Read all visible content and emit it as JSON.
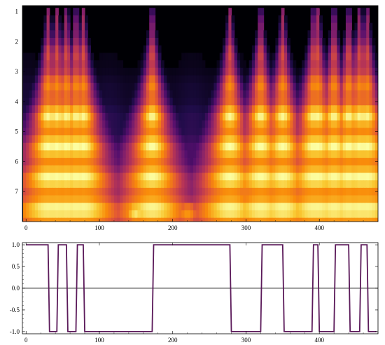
{
  "chart_data": [
    {
      "type": "heatmap",
      "title": "",
      "xlabel": "",
      "ylabel": "",
      "xlim": [
        -5,
        480
      ],
      "ylim": [
        0.8,
        8
      ],
      "y_reversed": true,
      "x_ticks": [
        "0",
        "100",
        "200",
        "300",
        "400"
      ],
      "x_tick_values": [
        0,
        100,
        200,
        300,
        400
      ],
      "y_ticks": [
        "1",
        "2",
        "3",
        "4",
        "5",
        "6",
        "7"
      ],
      "y_tick_values": [
        1,
        2,
        3,
        4,
        5,
        6,
        7
      ],
      "colormap": "inferno",
      "colors": {
        "low": "#000004",
        "mid": "#b73779",
        "high": "#fcffa4"
      },
      "description_data": {
        "scale_min": 1,
        "scale_max": 8,
        "transitions_x": [
          30,
          42,
          55,
          68,
          78,
          172,
          278,
          320,
          350,
          392,
          398,
          420,
          440,
          455,
          465
        ],
        "bright_regions": [
          {
            "x": 150,
            "scale": 7.8,
            "level": 1.0
          },
          {
            "x": 220,
            "scale": 7.9,
            "level": 0.9
          },
          {
            "x": 300,
            "scale": 7.0,
            "level": 0.95
          },
          {
            "x": 330,
            "scale": 6.5,
            "level": 0.95
          },
          {
            "x": 60,
            "scale": 5.2,
            "level": 0.8
          },
          {
            "x": 440,
            "scale": 5.2,
            "level": 0.8
          }
        ]
      }
    },
    {
      "type": "line",
      "title": "",
      "xlabel": "",
      "ylabel": "",
      "xlim": [
        -5,
        480
      ],
      "ylim": [
        -1.05,
        1.05
      ],
      "x_ticks": [
        "0",
        "100",
        "200",
        "300",
        "400"
      ],
      "x_tick_values": [
        0,
        100,
        200,
        300,
        400
      ],
      "y_ticks": [
        "-1.0",
        "-0.5",
        "0.0",
        "0.5",
        "1.0"
      ],
      "y_tick_values": [
        -1.0,
        -0.5,
        0.0,
        0.5,
        1.0
      ],
      "color": "#5b1a5a",
      "series": [
        {
          "x": [
            0,
            30,
            32,
            42,
            44,
            55,
            57,
            68,
            70,
            78,
            80,
            172,
            174,
            278,
            280,
            320,
            322,
            350,
            352,
            390,
            392,
            398,
            400,
            420,
            422,
            440,
            442,
            455,
            457,
            465,
            467,
            478
          ],
          "values": [
            1,
            1,
            -1,
            -1,
            1,
            1,
            -1,
            -1,
            1,
            1,
            -1,
            -1,
            1,
            1,
            -1,
            -1,
            1,
            1,
            -1,
            -1,
            1,
            1,
            -1,
            -1,
            1,
            1,
            -1,
            -1,
            1,
            1,
            -1,
            -1
          ]
        }
      ]
    }
  ]
}
